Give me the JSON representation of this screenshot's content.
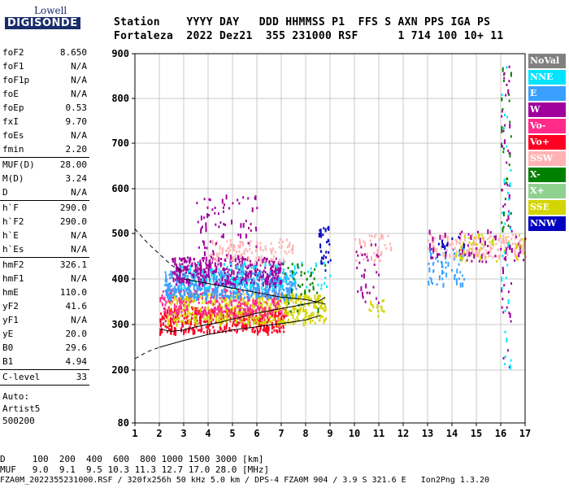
{
  "logo": {
    "top": "Lowell",
    "bottom": "DIGISONDE"
  },
  "header": {
    "line1": "Station    YYYY DAY   DDD HHMMSS P1  FFS S AXN PPS IGA PS",
    "line2": "Fortaleza  2022 Dez21  355 231000 RSF      1 714 100 10+ 11"
  },
  "params": [
    {
      "label": "foF2",
      "value": "8.650"
    },
    {
      "label": "foF1",
      "value": "N/A"
    },
    {
      "label": "foF1p",
      "value": "N/A"
    },
    {
      "label": "foE",
      "value": "N/A"
    },
    {
      "label": "foEp",
      "value": "0.53"
    },
    {
      "label": "fxI",
      "value": "9.70"
    },
    {
      "label": "foEs",
      "value": "N/A"
    },
    {
      "label": "fmin",
      "value": "2.20"
    },
    {
      "label": "MUF(D)",
      "value": "28.00"
    },
    {
      "label": "M(D)",
      "value": "3.24"
    },
    {
      "label": "D",
      "value": "N/A"
    },
    {
      "label": "h`F",
      "value": "290.0"
    },
    {
      "label": "h`F2",
      "value": "290.0"
    },
    {
      "label": "h`E",
      "value": "N/A"
    },
    {
      "label": "h`Es",
      "value": "N/A"
    },
    {
      "label": "hmF2",
      "value": "326.1"
    },
    {
      "label": "hmF1",
      "value": "N/A"
    },
    {
      "label": "hmE",
      "value": "110.0"
    },
    {
      "label": "yF2",
      "value": "41.6"
    },
    {
      "label": "yF1",
      "value": "N/A"
    },
    {
      "label": "yE",
      "value": "20.0"
    },
    {
      "label": "B0",
      "value": "29.6"
    },
    {
      "label": "B1",
      "value": "4.94"
    },
    {
      "label": "C-level",
      "value": "33"
    }
  ],
  "auto": {
    "label": "Auto:",
    "system": "Artist5",
    "code": "500200"
  },
  "legend": [
    {
      "label": "NoVal",
      "color": "#808080"
    },
    {
      "label": "NNE",
      "color": "#00e5ff"
    },
    {
      "label": "E",
      "color": "#3aa0ff"
    },
    {
      "label": "W",
      "color": "#a0009c"
    },
    {
      "label": "Vo-",
      "color": "#ff2a8a"
    },
    {
      "label": "Vo+",
      "color": "#ff0022"
    },
    {
      "label": "SSW",
      "color": "#ffb3b3"
    },
    {
      "label": "X-",
      "color": "#008000"
    },
    {
      "label": "X+",
      "color": "#8fd18f"
    },
    {
      "label": "SSE",
      "color": "#d4d400"
    },
    {
      "label": "NNW",
      "color": "#0000c0"
    }
  ],
  "footer": {
    "line1": "D     100  200  400  600  800 1000 1500 3000 [km]",
    "line2": "MUF   9.0  9.1  9.5 10.3 11.3 12.7 17.0 28.0 [MHz]",
    "line3": "FZA0M_2022355231000.RSF / 320fx256h 50 kHz 5.0 km / DPS-4 FZA0M 904 / 3.9 S 321.6 E   Ion2Png 1.3.20"
  },
  "chart_data": {
    "type": "scatter",
    "xlim": [
      1,
      17
    ],
    "ylim": [
      80,
      900
    ],
    "xticks": [
      "1",
      "2",
      "3",
      "4",
      "5",
      "6",
      "7",
      "8",
      "9",
      "10",
      "11",
      "12",
      "13",
      "14",
      "15",
      "16",
      "17"
    ],
    "yticks": [
      "80",
      "200",
      "300",
      "400",
      "500",
      "600",
      "700",
      "800",
      "900"
    ],
    "ytick_values": [
      80,
      200,
      300,
      400,
      500,
      600,
      700,
      800,
      900
    ],
    "grid": true,
    "bands": [
      {
        "name": "Vo+",
        "x": [
          2.0,
          7.2
        ],
        "y": [
          285,
          340
        ],
        "color": "#ff0022",
        "n": 420
      },
      {
        "name": "SSE",
        "x": [
          2.3,
          8.8
        ],
        "y": [
          305,
          370
        ],
        "color": "#d4d400",
        "n": 520
      },
      {
        "name": "Vo-",
        "x": [
          2.0,
          7.0
        ],
        "y": [
          320,
          380
        ],
        "color": "#ff2a8a",
        "n": 260
      },
      {
        "name": "E",
        "x": [
          2.2,
          7.6
        ],
        "y": [
          360,
          420
        ],
        "color": "#3aa0ff",
        "n": 520
      },
      {
        "name": "W",
        "x": [
          2.5,
          7.0
        ],
        "y": [
          390,
          450
        ],
        "color": "#a0009c",
        "n": 380
      },
      {
        "name": "SSW",
        "x": [
          4.0,
          7.5
        ],
        "y": [
          440,
          490
        ],
        "color": "#ffb3b3",
        "n": 120
      },
      {
        "name": "NNE",
        "x": [
          2.8,
          9.0
        ],
        "y": [
          380,
          440
        ],
        "color": "#00e5ff",
        "n": 120
      },
      {
        "name": "W",
        "x": [
          3.5,
          6.0
        ],
        "y": [
          450,
          590
        ],
        "color": "#a0009c",
        "n": 70
      },
      {
        "name": "NNW",
        "x": [
          8.5,
          9.0
        ],
        "y": [
          420,
          520
        ],
        "color": "#0000c0",
        "n": 30
      },
      {
        "name": "X-",
        "x": [
          7.0,
          8.8
        ],
        "y": [
          330,
          440
        ],
        "color": "#008000",
        "n": 40
      },
      {
        "name": "SSW",
        "x": [
          10.0,
          11.5
        ],
        "y": [
          440,
          500
        ],
        "color": "#ffb3b3",
        "n": 40
      },
      {
        "name": "W",
        "x": [
          10.0,
          11.0
        ],
        "y": [
          350,
          480
        ],
        "color": "#a0009c",
        "n": 30
      },
      {
        "name": "SSE",
        "x": [
          10.5,
          11.2
        ],
        "y": [
          320,
          360
        ],
        "color": "#d4d400",
        "n": 15
      },
      {
        "name": "SSW",
        "x": [
          13.0,
          17.0
        ],
        "y": [
          450,
          500
        ],
        "color": "#ffb3b3",
        "n": 160
      },
      {
        "name": "E",
        "x": [
          13.0,
          14.5
        ],
        "y": [
          390,
          470
        ],
        "color": "#3aa0ff",
        "n": 60
      },
      {
        "name": "W",
        "x": [
          13.0,
          17.0
        ],
        "y": [
          440,
          510
        ],
        "color": "#a0009c",
        "n": 60
      },
      {
        "name": "SSE",
        "x": [
          14.0,
          17.0
        ],
        "y": [
          440,
          500
        ],
        "color": "#d4d400",
        "n": 50
      },
      {
        "name": "NNW",
        "x": [
          13.2,
          14.5
        ],
        "y": [
          460,
          500
        ],
        "color": "#0000c0",
        "n": 12
      },
      {
        "name": "X-",
        "x": [
          16.0,
          16.4
        ],
        "y": [
          500,
          900
        ],
        "color": "#008000",
        "n": 30
      },
      {
        "name": "W",
        "x": [
          16.0,
          16.4
        ],
        "y": [
          200,
          880
        ],
        "color": "#a0009c",
        "n": 50
      },
      {
        "name": "NNE",
        "x": [
          16.0,
          16.4
        ],
        "y": [
          180,
          880
        ],
        "color": "#00e5ff",
        "n": 30
      }
    ],
    "traces": [
      {
        "name": "profile-upper",
        "style": "solid",
        "x": [
          2.0,
          2.5,
          3.0,
          3.5,
          4.0,
          4.5,
          5.0,
          5.5,
          6.0,
          6.5,
          7.0,
          7.5,
          8.0,
          8.5,
          8.8
        ],
        "y": [
          290,
          285,
          288,
          295,
          300,
          305,
          312,
          318,
          325,
          330,
          335,
          340,
          345,
          350,
          360
        ]
      },
      {
        "name": "profile-lower",
        "style": "solid",
        "x": [
          2.0,
          3.0,
          4.0,
          5.0,
          6.0,
          7.0,
          8.0,
          8.6
        ],
        "y": [
          250,
          265,
          278,
          288,
          295,
          302,
          310,
          320
        ]
      },
      {
        "name": "extrap-top",
        "style": "dashed",
        "x": [
          1.0,
          1.5,
          2.0,
          2.5,
          3.0
        ],
        "y": [
          510,
          480,
          455,
          430,
          415
        ]
      },
      {
        "name": "extrap-bottom",
        "style": "dashed",
        "x": [
          1.0,
          1.5,
          2.0
        ],
        "y": [
          225,
          240,
          250
        ]
      },
      {
        "name": "profile-mid",
        "style": "solid",
        "x": [
          3.0,
          4.0,
          5.0,
          6.0,
          7.0,
          8.0,
          8.8
        ],
        "y": [
          400,
          390,
          380,
          370,
          360,
          355,
          345
        ]
      }
    ]
  }
}
